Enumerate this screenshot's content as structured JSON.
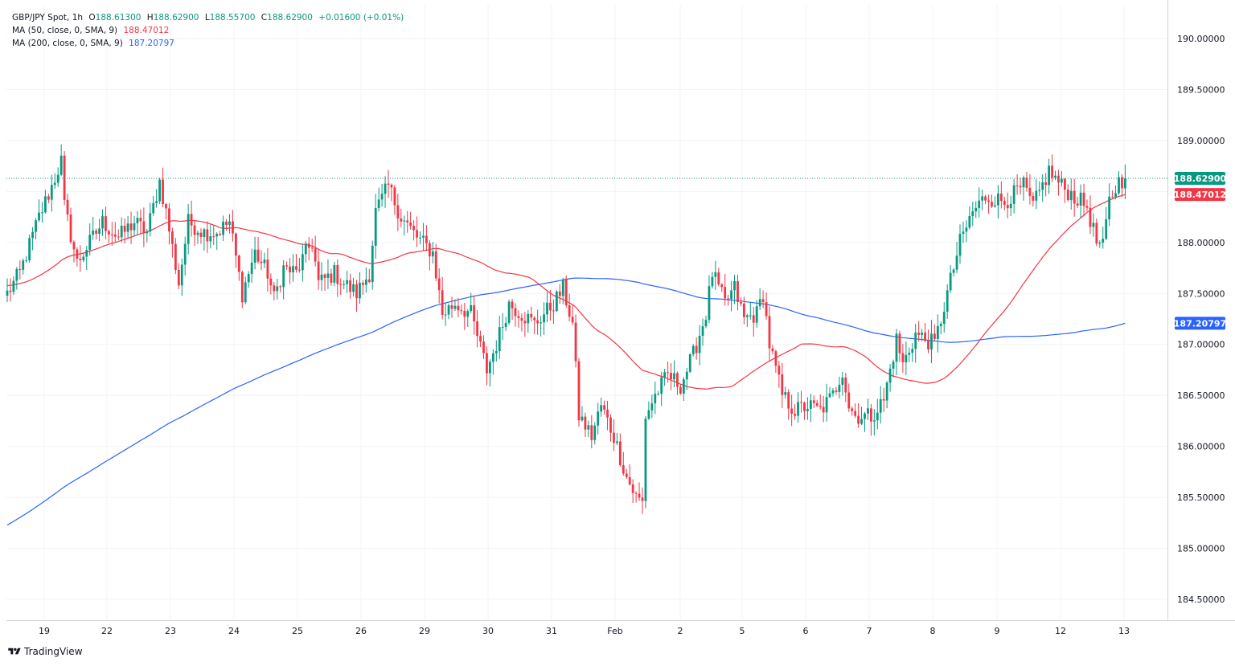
{
  "header": {
    "symbol": "GBP/JPY Spot, 1h",
    "open_label": "O",
    "open": "188.61300",
    "high_label": "H",
    "high": "188.62900",
    "low_label": "L",
    "low": "188.55700",
    "close_label": "C",
    "close": "188.62900",
    "change": "+0.01600 (+0.01%)"
  },
  "indicators": [
    {
      "label": "MA (50, close, 0, SMA, 9)",
      "value": "188.47012",
      "color": "#f23645"
    },
    {
      "label": "MA (200, close, 0, SMA, 9)",
      "value": "187.20797",
      "color": "#2962ff"
    }
  ],
  "branding": "TradingView",
  "colors": {
    "up": "#089981",
    "down": "#f23645",
    "ma50": "#f23645",
    "ma200": "#2962ff",
    "grid": "#f0f3fa",
    "text": "#131722"
  },
  "chart_data": {
    "type": "candlestick",
    "symbol": "GBP/JPY",
    "interval": "1h",
    "ylim": [
      184.2,
      190.2
    ],
    "y_ticks": [
      "184.50000",
      "185.00000",
      "185.50000",
      "186.00000",
      "186.50000",
      "187.00000",
      "187.50000",
      "188.00000",
      "188.50000",
      "189.00000",
      "189.50000",
      "190.00000"
    ],
    "x_ticks": [
      "19",
      "22",
      "23",
      "24",
      "25",
      "26",
      "29",
      "30",
      "31",
      "Feb",
      "2",
      "5",
      "6",
      "7",
      "8",
      "9",
      "12",
      "13"
    ],
    "grid": true,
    "last_price": "188.62900",
    "price_labels": [
      {
        "value": "188.62900",
        "color": "#089981"
      },
      {
        "value": "188.47012",
        "color": "#f23645"
      },
      {
        "value": "187.20797",
        "color": "#2962ff"
      }
    ],
    "path_keypoints": [
      [
        0,
        187.5
      ],
      [
        4,
        187.7
      ],
      [
        10,
        188.25
      ],
      [
        14,
        188.55
      ],
      [
        17,
        188.8
      ],
      [
        18,
        188.35
      ],
      [
        22,
        187.8
      ],
      [
        26,
        188.0
      ],
      [
        30,
        188.2
      ],
      [
        35,
        188.05
      ],
      [
        40,
        188.2
      ],
      [
        44,
        188.1
      ],
      [
        48,
        188.6
      ],
      [
        50,
        188.3
      ],
      [
        54,
        187.6
      ],
      [
        57,
        188.2
      ],
      [
        62,
        188.1
      ],
      [
        66,
        188.1
      ],
      [
        70,
        188.2
      ],
      [
        74,
        187.5
      ],
      [
        78,
        187.9
      ],
      [
        82,
        187.7
      ],
      [
        84,
        187.45
      ],
      [
        87,
        187.75
      ],
      [
        91,
        187.7
      ],
      [
        94,
        187.9
      ],
      [
        96,
        188.0
      ],
      [
        98,
        187.6
      ],
      [
        103,
        187.7
      ],
      [
        106,
        187.6
      ],
      [
        110,
        187.5
      ],
      [
        114,
        187.7
      ],
      [
        116,
        188.3
      ],
      [
        120,
        188.55
      ],
      [
        124,
        188.25
      ],
      [
        129,
        188.05
      ],
      [
        134,
        187.9
      ],
      [
        137,
        187.3
      ],
      [
        141,
        187.4
      ],
      [
        146,
        187.3
      ],
      [
        151,
        186.75
      ],
      [
        154,
        187.0
      ],
      [
        158,
        187.4
      ],
      [
        162,
        187.3
      ],
      [
        166,
        187.2
      ],
      [
        172,
        187.4
      ],
      [
        175,
        187.55
      ],
      [
        178,
        187.2
      ],
      [
        180,
        186.3
      ],
      [
        184,
        186.1
      ],
      [
        187,
        186.4
      ],
      [
        191,
        186.1
      ],
      [
        195,
        185.7
      ],
      [
        198,
        185.5
      ],
      [
        200,
        185.45
      ],
      [
        201,
        186.3
      ],
      [
        204,
        186.5
      ],
      [
        208,
        186.7
      ],
      [
        212,
        186.6
      ],
      [
        216,
        186.9
      ],
      [
        220,
        187.3
      ],
      [
        222,
        187.7
      ],
      [
        226,
        187.4
      ],
      [
        229,
        187.55
      ],
      [
        232,
        187.25
      ],
      [
        236,
        187.3
      ],
      [
        238,
        187.5
      ],
      [
        240,
        187.0
      ],
      [
        244,
        186.5
      ],
      [
        248,
        186.35
      ],
      [
        252,
        186.4
      ],
      [
        256,
        186.35
      ],
      [
        260,
        186.5
      ],
      [
        263,
        186.75
      ],
      [
        265,
        186.4
      ],
      [
        267,
        186.3
      ],
      [
        272,
        186.3
      ],
      [
        276,
        186.45
      ],
      [
        280,
        187.05
      ],
      [
        282,
        186.8
      ],
      [
        286,
        187.1
      ],
      [
        292,
        187.0
      ],
      [
        296,
        187.5
      ],
      [
        300,
        188.0
      ],
      [
        304,
        188.3
      ],
      [
        308,
        188.45
      ],
      [
        314,
        188.4
      ],
      [
        320,
        188.55
      ],
      [
        323,
        188.35
      ],
      [
        328,
        188.7
      ],
      [
        332,
        188.55
      ],
      [
        336,
        188.45
      ],
      [
        340,
        188.35
      ],
      [
        343,
        188.0
      ],
      [
        345,
        187.95
      ],
      [
        347,
        188.4
      ],
      [
        350,
        188.6
      ],
      [
        352,
        188.62
      ]
    ]
  }
}
